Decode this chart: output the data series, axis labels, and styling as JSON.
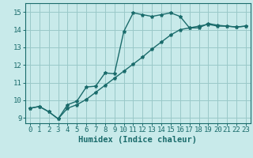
{
  "title": "",
  "xlabel": "Humidex (Indice chaleur)",
  "bg_color": "#c8eaea",
  "grid_color": "#9ac8c8",
  "line_color": "#1a6b6b",
  "xlim": [
    -0.5,
    23.5
  ],
  "ylim": [
    8.7,
    15.5
  ],
  "xticks": [
    0,
    1,
    2,
    3,
    4,
    5,
    6,
    7,
    8,
    9,
    10,
    11,
    12,
    13,
    14,
    15,
    16,
    17,
    18,
    19,
    20,
    21,
    22,
    23
  ],
  "yticks": [
    9,
    10,
    11,
    12,
    13,
    14,
    15
  ],
  "line1_x": [
    0,
    1,
    2,
    3,
    4,
    5,
    6,
    7,
    8,
    9,
    10,
    11,
    12,
    13,
    14,
    15,
    16,
    17,
    18,
    19,
    20,
    21,
    22,
    23
  ],
  "line1_y": [
    9.55,
    9.65,
    9.35,
    8.95,
    9.75,
    9.95,
    10.75,
    10.8,
    11.55,
    11.5,
    13.9,
    14.95,
    14.85,
    14.75,
    14.85,
    14.95,
    14.75,
    14.1,
    14.1,
    14.35,
    14.25,
    14.2,
    14.15,
    14.2
  ],
  "line2_x": [
    0,
    1,
    2,
    3,
    4,
    5,
    6,
    7,
    8,
    9,
    10,
    11,
    12,
    13,
    14,
    15,
    16,
    17,
    18,
    19,
    20,
    21,
    22,
    23
  ],
  "line2_y": [
    9.55,
    9.65,
    9.35,
    8.95,
    9.55,
    9.75,
    10.05,
    10.45,
    10.85,
    11.25,
    11.65,
    12.05,
    12.45,
    12.9,
    13.3,
    13.7,
    14.0,
    14.1,
    14.2,
    14.3,
    14.2,
    14.2,
    14.15,
    14.2
  ],
  "marker": "*",
  "markersize": 3,
  "linewidth": 1.0,
  "xlabel_fontsize": 7.5,
  "tick_fontsize": 6.5
}
